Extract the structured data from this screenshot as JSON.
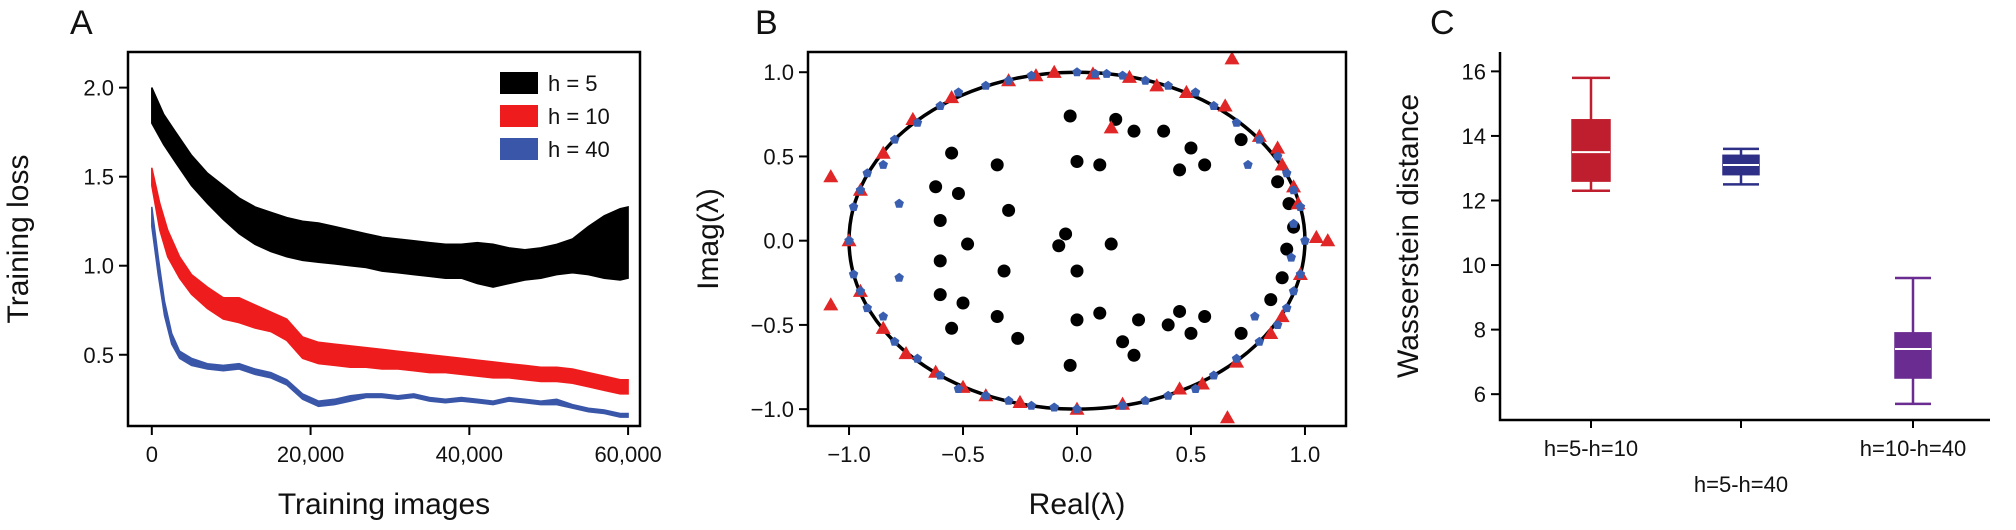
{
  "chart_data": [
    {
      "panel": "A",
      "type": "area",
      "xlabel": "Training images",
      "ylabel": "Training loss",
      "xlim": [
        -3000,
        61500
      ],
      "ylim": [
        0.1,
        2.2
      ],
      "xticks": [
        0,
        20000,
        40000,
        60000
      ],
      "xtick_labels": [
        "0",
        "20,000",
        "40,000",
        "60,000"
      ],
      "yticks": [
        0.5,
        1.0,
        1.5,
        2.0
      ],
      "ytick_labels": [
        "0.5",
        "1.0",
        "1.5",
        "2.0"
      ],
      "legend_position": "top-right",
      "series": [
        {
          "name": "h = 5",
          "color": "#000000",
          "x": [
            0,
            1500,
            3000,
            5000,
            7000,
            9000,
            11000,
            13000,
            15000,
            17000,
            19000,
            21000,
            23000,
            25000,
            27000,
            29000,
            31000,
            33000,
            35000,
            37000,
            39000,
            41000,
            43000,
            45000,
            47000,
            49000,
            51000,
            53000,
            55000,
            57000,
            59000,
            60000
          ],
          "upper": [
            2.0,
            1.85,
            1.75,
            1.62,
            1.52,
            1.45,
            1.38,
            1.33,
            1.3,
            1.27,
            1.25,
            1.24,
            1.22,
            1.2,
            1.18,
            1.16,
            1.15,
            1.14,
            1.13,
            1.12,
            1.12,
            1.13,
            1.12,
            1.1,
            1.09,
            1.1,
            1.12,
            1.15,
            1.22,
            1.28,
            1.32,
            1.33
          ],
          "lower": [
            1.8,
            1.68,
            1.58,
            1.45,
            1.35,
            1.26,
            1.18,
            1.12,
            1.08,
            1.05,
            1.03,
            1.02,
            1.01,
            1.0,
            0.99,
            0.97,
            0.96,
            0.95,
            0.94,
            0.93,
            0.93,
            0.9,
            0.88,
            0.9,
            0.92,
            0.93,
            0.95,
            0.96,
            0.95,
            0.93,
            0.92,
            0.93
          ]
        },
        {
          "name": "h = 10",
          "color": "#ee1c1c",
          "x": [
            0,
            1000,
            2000,
            3500,
            5000,
            7000,
            9000,
            11000,
            13000,
            15000,
            17000,
            19000,
            21000,
            23000,
            25000,
            27000,
            29000,
            31000,
            33000,
            35000,
            37000,
            39000,
            41000,
            43000,
            45000,
            47000,
            49000,
            51000,
            53000,
            55000,
            57000,
            59000,
            60000
          ],
          "upper": [
            1.55,
            1.35,
            1.2,
            1.05,
            0.95,
            0.88,
            0.82,
            0.82,
            0.78,
            0.74,
            0.7,
            0.6,
            0.57,
            0.56,
            0.55,
            0.54,
            0.53,
            0.52,
            0.51,
            0.5,
            0.49,
            0.48,
            0.47,
            0.46,
            0.45,
            0.44,
            0.43,
            0.43,
            0.42,
            0.4,
            0.38,
            0.36,
            0.36
          ],
          "lower": [
            1.45,
            1.2,
            1.05,
            0.93,
            0.84,
            0.76,
            0.7,
            0.68,
            0.65,
            0.63,
            0.58,
            0.48,
            0.45,
            0.44,
            0.43,
            0.43,
            0.42,
            0.42,
            0.41,
            0.4,
            0.4,
            0.39,
            0.38,
            0.37,
            0.37,
            0.36,
            0.35,
            0.35,
            0.34,
            0.32,
            0.3,
            0.28,
            0.28
          ]
        },
        {
          "name": "h = 40",
          "color": "#3a56a8",
          "x": [
            0,
            800,
            1600,
            2500,
            3500,
            5000,
            7000,
            9000,
            11000,
            13000,
            15000,
            17000,
            19000,
            21000,
            23000,
            25000,
            27000,
            29000,
            31000,
            33000,
            35000,
            37000,
            39000,
            41000,
            43000,
            45000,
            47000,
            49000,
            51000,
            53000,
            55000,
            57000,
            59000,
            60000
          ],
          "upper": [
            1.33,
            1.05,
            0.8,
            0.62,
            0.52,
            0.48,
            0.45,
            0.44,
            0.45,
            0.42,
            0.4,
            0.36,
            0.28,
            0.24,
            0.25,
            0.27,
            0.28,
            0.28,
            0.27,
            0.28,
            0.26,
            0.25,
            0.26,
            0.25,
            0.24,
            0.26,
            0.25,
            0.24,
            0.25,
            0.22,
            0.2,
            0.19,
            0.17,
            0.17
          ],
          "lower": [
            1.22,
            0.95,
            0.72,
            0.56,
            0.48,
            0.44,
            0.42,
            0.41,
            0.42,
            0.39,
            0.37,
            0.33,
            0.25,
            0.21,
            0.22,
            0.24,
            0.26,
            0.26,
            0.25,
            0.26,
            0.24,
            0.23,
            0.24,
            0.23,
            0.22,
            0.24,
            0.23,
            0.22,
            0.22,
            0.2,
            0.18,
            0.17,
            0.15,
            0.15
          ]
        }
      ]
    },
    {
      "panel": "B",
      "type": "scatter",
      "xlabel": "Real(λ)",
      "ylabel": "Imag(λ)",
      "xlim": [
        -1.18,
        1.18
      ],
      "ylim": [
        -1.1,
        1.12
      ],
      "xticks": [
        -1.0,
        -0.5,
        0.0,
        0.5,
        1.0
      ],
      "xtick_labels": [
        "−1.0",
        "−0.5",
        "0.0",
        "0.5",
        "1.0"
      ],
      "yticks": [
        -1.0,
        -0.5,
        0.0,
        0.5,
        1.0
      ],
      "ytick_labels": [
        "−1.0",
        "−0.5",
        "0.0",
        "0.5",
        "1.0"
      ],
      "unit_circle": {
        "radius": 1.0,
        "color": "#000000"
      },
      "series": [
        {
          "marker": "circle",
          "color": "#000000",
          "points": [
            [
              -0.03,
              0.74
            ],
            [
              0.17,
              0.72
            ],
            [
              0.25,
              0.65
            ],
            [
              0.38,
              0.65
            ],
            [
              -0.55,
              0.52
            ],
            [
              -0.35,
              0.45
            ],
            [
              0.0,
              0.47
            ],
            [
              0.1,
              0.45
            ],
            [
              0.5,
              0.55
            ],
            [
              0.72,
              0.6
            ],
            [
              -0.62,
              0.32
            ],
            [
              -0.52,
              0.28
            ],
            [
              0.45,
              0.42
            ],
            [
              0.56,
              0.45
            ],
            [
              -0.3,
              0.18
            ],
            [
              -0.6,
              0.12
            ],
            [
              -0.05,
              0.04
            ],
            [
              -0.08,
              -0.03
            ],
            [
              -0.48,
              -0.02
            ],
            [
              0.15,
              -0.02
            ],
            [
              -0.6,
              -0.12
            ],
            [
              -0.32,
              -0.18
            ],
            [
              0.0,
              -0.18
            ],
            [
              -0.6,
              -0.32
            ],
            [
              -0.5,
              -0.37
            ],
            [
              0.56,
              -0.45
            ],
            [
              0.45,
              -0.42
            ],
            [
              -0.35,
              -0.45
            ],
            [
              0.0,
              -0.47
            ],
            [
              0.1,
              -0.43
            ],
            [
              0.27,
              -0.47
            ],
            [
              0.4,
              -0.5
            ],
            [
              -0.55,
              -0.52
            ],
            [
              -0.26,
              -0.58
            ],
            [
              0.2,
              -0.6
            ],
            [
              0.5,
              -0.55
            ],
            [
              0.72,
              -0.55
            ],
            [
              0.25,
              -0.68
            ],
            [
              -0.03,
              -0.74
            ],
            [
              0.92,
              -0.05
            ],
            [
              0.95,
              0.08
            ],
            [
              0.9,
              -0.22
            ],
            [
              0.93,
              0.22
            ],
            [
              0.88,
              0.35
            ],
            [
              0.85,
              -0.35
            ]
          ]
        },
        {
          "marker": "triangle",
          "color": "#e02626",
          "points": [
            [
              -1.08,
              0.38
            ],
            [
              -1.08,
              -0.38
            ],
            [
              -0.72,
              0.72
            ],
            [
              -0.55,
              0.85
            ],
            [
              -0.3,
              0.95
            ],
            [
              -0.1,
              1.0
            ],
            [
              0.07,
              0.99
            ],
            [
              0.23,
              0.97
            ],
            [
              0.48,
              0.88
            ],
            [
              0.65,
              0.8
            ],
            [
              0.88,
              0.55
            ],
            [
              0.97,
              0.22
            ],
            [
              1.05,
              0.02
            ],
            [
              1.1,
              0.0
            ],
            [
              0.98,
              -0.2
            ],
            [
              0.9,
              -0.45
            ],
            [
              0.7,
              -0.72
            ],
            [
              0.66,
              -1.05
            ],
            [
              0.45,
              -0.88
            ],
            [
              0.2,
              -0.97
            ],
            [
              0.0,
              -1.0
            ],
            [
              -0.25,
              -0.96
            ],
            [
              -0.5,
              -0.87
            ],
            [
              -0.75,
              -0.67
            ],
            [
              -0.95,
              -0.3
            ],
            [
              -1.0,
              0.0
            ],
            [
              -0.95,
              0.3
            ],
            [
              0.85,
              -0.55
            ],
            [
              0.8,
              0.62
            ],
            [
              -0.18,
              0.98
            ],
            [
              0.35,
              0.92
            ],
            [
              0.55,
              -0.85
            ],
            [
              -0.4,
              -0.92
            ],
            [
              -0.85,
              -0.52
            ],
            [
              -0.85,
              0.52
            ],
            [
              0.15,
              0.67
            ],
            [
              0.95,
              0.32
            ],
            [
              0.9,
              0.45
            ],
            [
              -0.62,
              -0.78
            ],
            [
              0.68,
              1.08
            ]
          ]
        },
        {
          "marker": "pentagon",
          "color": "#3a5fb0",
          "points": [
            [
              -0.6,
              0.8
            ],
            [
              -0.4,
              0.92
            ],
            [
              -0.2,
              0.98
            ],
            [
              0.0,
              1.0
            ],
            [
              0.2,
              0.98
            ],
            [
              0.4,
              0.92
            ],
            [
              0.6,
              0.8
            ],
            [
              0.8,
              0.6
            ],
            [
              0.92,
              0.4
            ],
            [
              0.98,
              0.2
            ],
            [
              1.0,
              0.0
            ],
            [
              0.98,
              -0.2
            ],
            [
              0.92,
              -0.4
            ],
            [
              0.8,
              -0.6
            ],
            [
              0.6,
              -0.8
            ],
            [
              0.4,
              -0.92
            ],
            [
              0.2,
              -0.98
            ],
            [
              0.0,
              -1.0
            ],
            [
              -0.2,
              -0.98
            ],
            [
              -0.4,
              -0.92
            ],
            [
              -0.6,
              -0.8
            ],
            [
              -0.8,
              -0.6
            ],
            [
              -0.92,
              -0.4
            ],
            [
              -0.98,
              -0.2
            ],
            [
              -1.0,
              0.0
            ],
            [
              -0.98,
              0.2
            ],
            [
              -0.92,
              0.4
            ],
            [
              -0.8,
              0.6
            ],
            [
              -0.78,
              0.22
            ],
            [
              -0.78,
              -0.22
            ],
            [
              -0.85,
              0.45
            ],
            [
              -0.85,
              -0.45
            ],
            [
              -0.52,
              0.88
            ],
            [
              0.52,
              0.88
            ],
            [
              -0.52,
              -0.88
            ],
            [
              0.52,
              -0.88
            ],
            [
              0.7,
              0.7
            ],
            [
              0.7,
              -0.7
            ],
            [
              -0.7,
              0.7
            ],
            [
              -0.7,
              -0.7
            ],
            [
              0.88,
              0.5
            ],
            [
              0.88,
              -0.5
            ],
            [
              0.3,
              0.95
            ],
            [
              -0.3,
              0.95
            ],
            [
              0.3,
              -0.95
            ],
            [
              -0.3,
              -0.95
            ],
            [
              0.95,
              0.3
            ],
            [
              0.95,
              -0.3
            ],
            [
              -0.95,
              0.3
            ],
            [
              -0.95,
              -0.3
            ],
            [
              0.08,
              0.99
            ],
            [
              0.13,
              0.99
            ],
            [
              -0.1,
              -0.99
            ],
            [
              0.75,
              0.45
            ],
            [
              0.78,
              -0.45
            ],
            [
              0.95,
              0.1
            ],
            [
              0.94,
              -0.1
            ]
          ]
        }
      ]
    },
    {
      "panel": "C",
      "type": "box",
      "xlabel": "",
      "ylabel": "Wasserstein distance",
      "ylim": [
        5.2,
        16.6
      ],
      "yticks": [
        6,
        8,
        10,
        12,
        14,
        16
      ],
      "ytick_labels": [
        "6",
        "8",
        "10",
        "12",
        "14",
        "16"
      ],
      "categories": [
        "h=5-h=10",
        "h=5-h=40",
        "h=10-h=40"
      ],
      "boxes": [
        {
          "category": "h=5-h=10",
          "color": "#bf1e2e",
          "whisker_low": 12.3,
          "q1": 12.6,
          "median": 13.5,
          "q3": 14.5,
          "whisker_high": 15.8
        },
        {
          "category": "h=5-h=40",
          "color": "#2e2f86",
          "whisker_low": 12.5,
          "q1": 12.8,
          "median": 13.1,
          "q3": 13.4,
          "whisker_high": 13.6
        },
        {
          "category": "h=10-h=40",
          "color": "#6a2c91",
          "whisker_low": 5.7,
          "q1": 6.5,
          "median": 7.4,
          "q3": 7.9,
          "whisker_high": 9.6
        }
      ]
    }
  ]
}
